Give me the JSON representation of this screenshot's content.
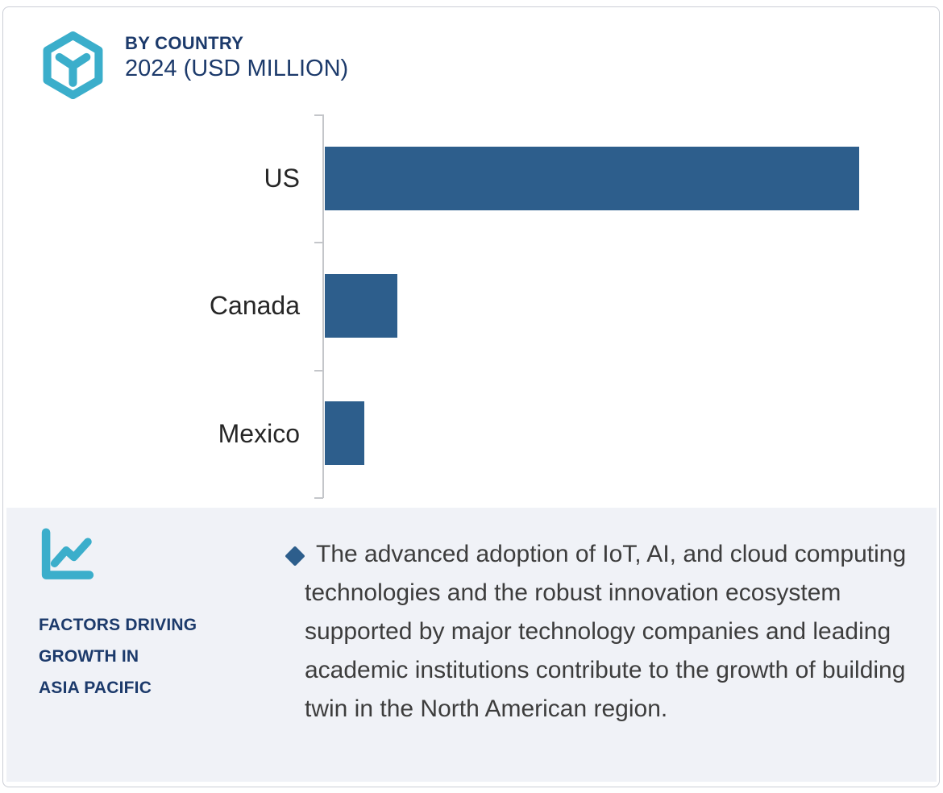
{
  "header": {
    "title": "BY COUNTRY",
    "subtitle": "2024 (USD MILLION)",
    "logo_icon": "hexagon-cube-icon"
  },
  "colors": {
    "accent_teal": "#3BAECB",
    "navy": "#1C3A6B",
    "bar_blue": "#2D5E8C",
    "panel_bg": "#F0F2F7",
    "axis_gray": "#C4C6CA",
    "label_text": "#262626",
    "body_text": "#3D3D3D",
    "card_border": "#CBCED6"
  },
  "chart_data": {
    "type": "bar",
    "orientation": "horizontal",
    "title": "BY COUNTRY 2024 (USD MILLION)",
    "categories": [
      "US",
      "Canada",
      "Mexico"
    ],
    "values": [
      100,
      13.5,
      7.4
    ],
    "values_note": "relative bar lengths as % of US bar; no numeric axis labels shown in figure",
    "xlabel": "",
    "ylabel": "",
    "grid": false,
    "legend": false,
    "bar_color": "#2D5E8C"
  },
  "panel": {
    "icon": "line-chart-icon",
    "heading": "FACTORS DRIVING\nGROWTH IN\nASIA PACIFIC",
    "bullet_marker": "diamond",
    "bullet_text": "The advanced adoption of IoT, AI, and cloud computing technologies and the robust innovation ecosystem supported by major technology companies and leading academic institutions contribute to the growth of building twin in the North American region."
  }
}
